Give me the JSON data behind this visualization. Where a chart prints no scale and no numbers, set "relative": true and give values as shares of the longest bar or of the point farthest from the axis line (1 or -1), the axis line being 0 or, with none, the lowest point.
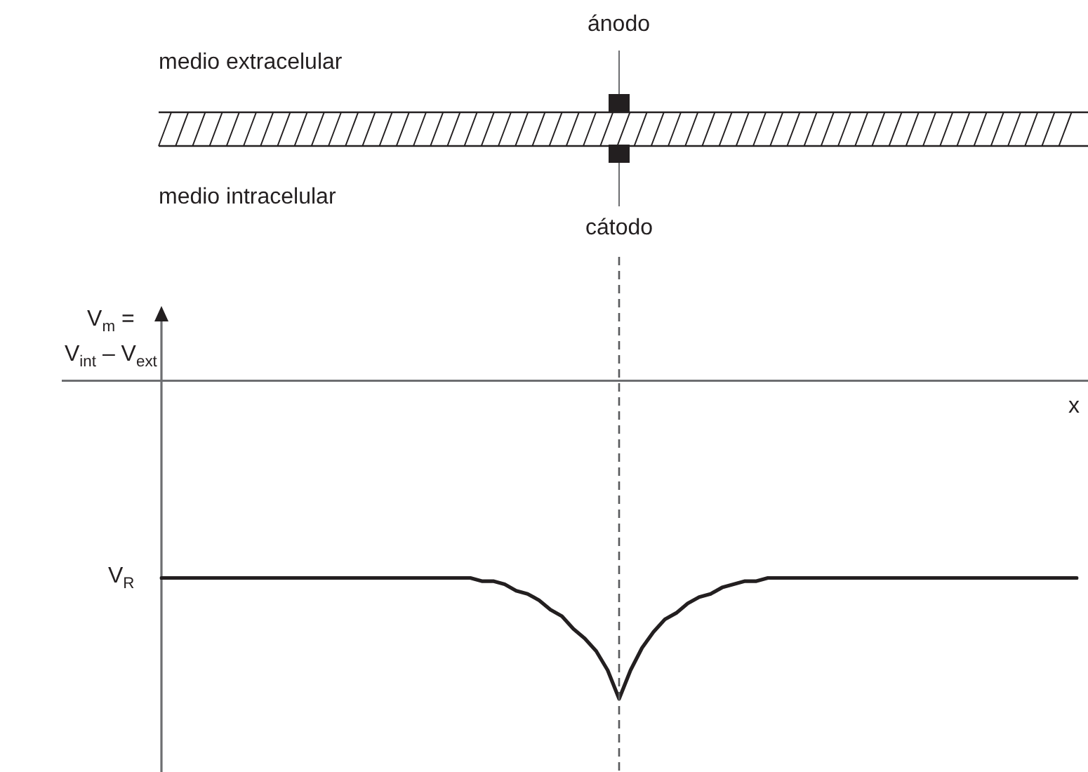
{
  "chart_data": {
    "type": "line",
    "relative": true,
    "ylabel": "V$_{m}$ =\nV$_{int}$ – V$_{ext}$",
    "xlabel": "x",
    "categories": [
      null,
      null,
      null,
      null,
      null,
      null,
      null,
      null,
      null,
      null,
      null,
      null,
      null,
      null,
      null,
      null,
      null,
      null,
      null,
      null,
      null,
      null,
      null,
      null,
      null,
      null,
      null,
      null,
      null,
      null,
      null,
      null,
      null,
      null,
      null,
      null,
      null,
      null,
      null,
      null,
      null,
      null,
      null,
      null,
      null,
      null,
      null,
      null,
      null,
      null,
      null,
      null,
      null,
      null,
      null,
      null,
      null,
      null,
      null,
      null,
      null,
      null,
      null,
      null,
      null,
      null,
      null,
      null,
      null,
      null,
      null,
      null,
      null,
      null,
      null,
      null,
      null,
      null,
      null,
      null,
      null
    ],
    "values": [
      -0.62,
      -0.62,
      -0.62,
      -0.62,
      -0.62,
      -0.62,
      -0.62,
      -0.62,
      -0.62,
      -0.62,
      -0.62,
      -0.62,
      -0.62,
      -0.62,
      -0.62,
      -0.62,
      -0.62,
      -0.62,
      -0.62,
      -0.62,
      -0.62,
      -0.62,
      -0.62,
      -0.62,
      -0.62,
      -0.62,
      -0.62,
      -0.62,
      -0.63,
      -0.63,
      -0.64,
      -0.66,
      -0.67,
      -0.69,
      -0.72,
      -0.74,
      -0.78,
      -0.81,
      -0.85,
      -0.91,
      -1,
      -0.91,
      -0.84,
      -0.79,
      -0.75,
      -0.73,
      -0.7,
      -0.68,
      -0.67,
      -0.65,
      -0.64,
      -0.63,
      -0.63,
      -0.62,
      -0.62,
      -0.62,
      -0.62,
      -0.62,
      -0.62,
      -0.62,
      -0.62,
      -0.62,
      -0.62,
      -0.62,
      -0.62,
      -0.62,
      -0.62,
      -0.62,
      -0.62,
      -0.62,
      -0.62,
      -0.62,
      -0.62,
      -0.62,
      -0.62,
      -0.62,
      -0.62,
      -0.62,
      -0.62,
      -0.62,
      -0.62
    ],
    "color": "#231f20",
    "marker": "none",
    "line_style": "solid",
    "annotations": [
      "medio extracelular",
      "medio intracelular",
      "ánodo",
      "cátodo",
      "V$_{R}$"
    ]
  }
}
